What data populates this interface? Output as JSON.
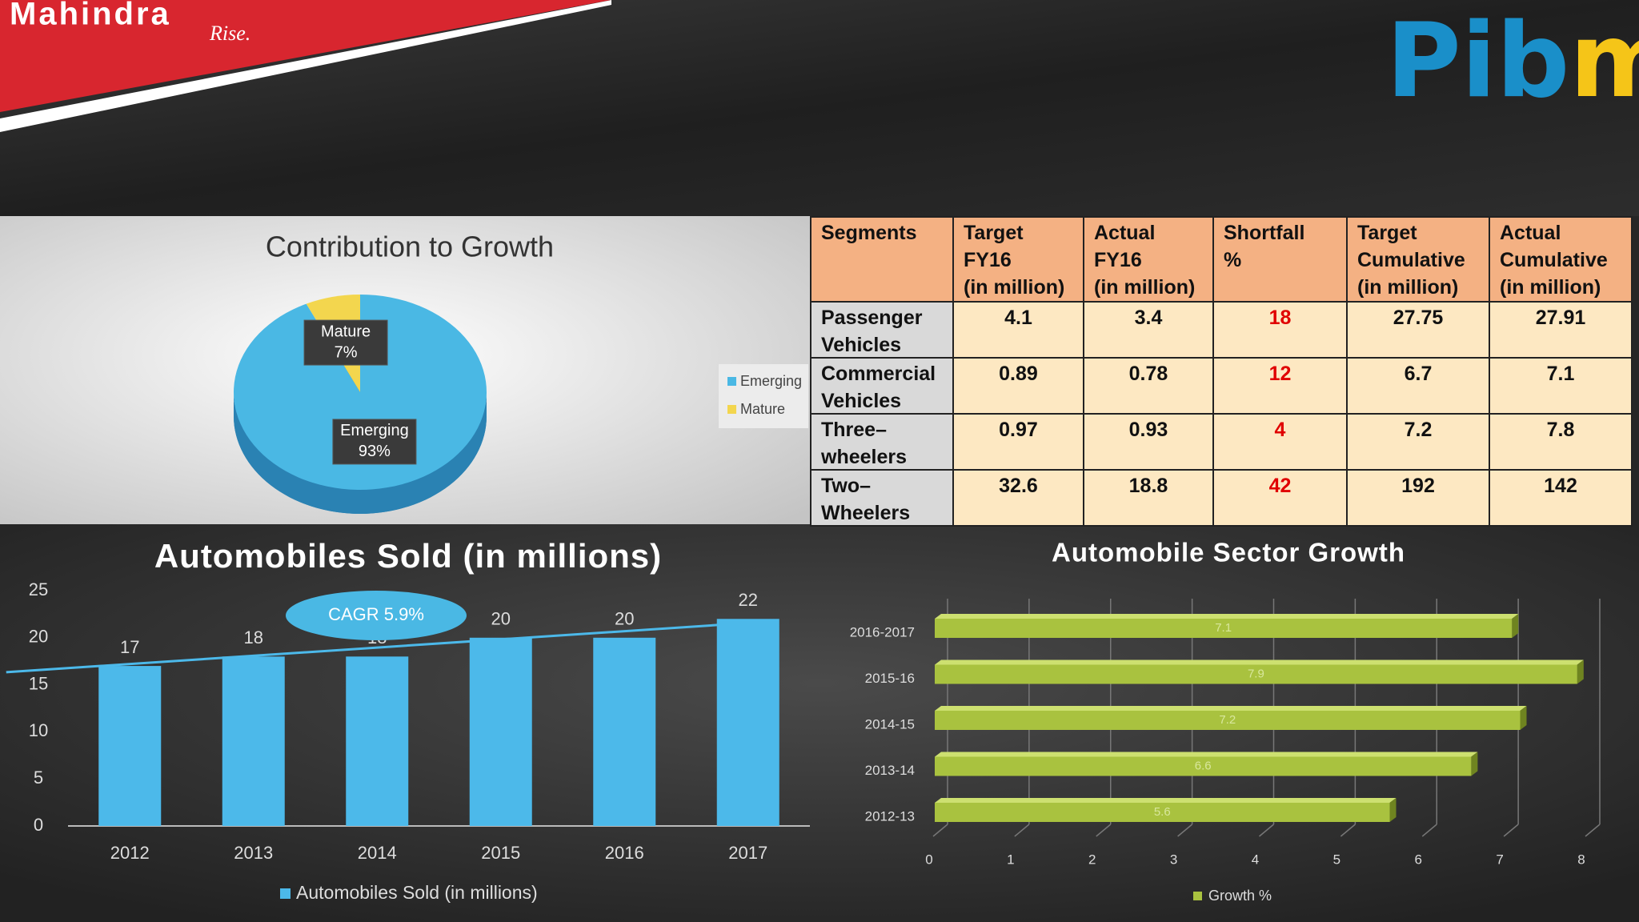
{
  "header": {
    "brand_left": {
      "name": "Mahindra",
      "tagline": "Rise."
    },
    "brand_right": {
      "main": "Pib",
      "accent": "m"
    }
  },
  "chart_data": [
    {
      "type": "pie",
      "title": "Contribution to Growth",
      "categories": [
        "Emerging",
        "Mature"
      ],
      "values": [
        93,
        7
      ],
      "value_labels": [
        "93%",
        "7%"
      ],
      "colors": [
        "#4ab8e4",
        "#f3d64e"
      ],
      "legend": "right"
    },
    {
      "type": "bar",
      "title": "Automobiles Sold (in millions)",
      "categories": [
        "2012",
        "2013",
        "2014",
        "2015",
        "2016",
        "2017"
      ],
      "series": [
        {
          "name": "Automobiles Sold (in millions)",
          "color": "#4cb9ea",
          "values": [
            17,
            18,
            18,
            20,
            20,
            22
          ]
        }
      ],
      "ylim": [
        0,
        25
      ],
      "yticks": [
        0,
        5,
        10,
        15,
        20,
        25
      ],
      "trendline": true,
      "annotations": [
        "CAGR 5.9%"
      ],
      "legend": "bottom"
    },
    {
      "type": "hbar",
      "title": "Automobile Sector Growth",
      "categories": [
        "2012-13",
        "2013-14",
        "2014-15",
        "2015-16",
        "2016-2017"
      ],
      "series": [
        {
          "name": "Growth %",
          "color": "#a9c23f",
          "values": [
            5.6,
            6.6,
            7.2,
            7.9,
            7.1
          ]
        }
      ],
      "xlim": [
        0,
        8
      ],
      "xticks": [
        0,
        1,
        2,
        3,
        4,
        5,
        6,
        7,
        8
      ],
      "grid": true,
      "legend": "bottom"
    }
  ],
  "table": {
    "header": [
      "Segments",
      "Target\nFY16\n(in million)",
      "Actual\nFY16\n(in million)",
      "Shortfall\n%",
      "Target\nCumulative\n(in million)",
      "Actual\nCumulative\n(in million)"
    ],
    "rows": [
      [
        "Passenger\nVehicles",
        4.1,
        3.4,
        18,
        27.75,
        27.91
      ],
      [
        "Commercial\nVehicles",
        0.89,
        0.78,
        12,
        6.7,
        7.1
      ],
      [
        "Three–\nwheelers",
        0.97,
        0.93,
        4,
        7.2,
        7.8
      ],
      [
        "Two–\nWheelers",
        32.6,
        18.8,
        42,
        192,
        142
      ]
    ]
  }
}
